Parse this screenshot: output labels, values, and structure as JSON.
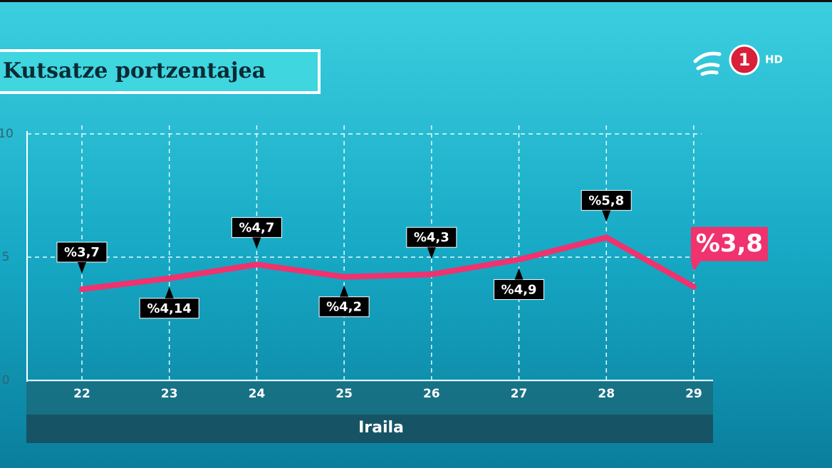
{
  "chart_data": {
    "type": "line",
    "title": "Kutsatze portzentajea",
    "x_label": "Iraila",
    "categories": [
      "22",
      "23",
      "24",
      "25",
      "26",
      "27",
      "28",
      "29"
    ],
    "values": [
      3.7,
      4.14,
      4.7,
      4.2,
      4.3,
      4.9,
      5.8,
      3.8
    ],
    "value_labels": [
      "%3,7",
      "%4,14",
      "%4,7",
      "%4,2",
      "%4,3",
      "%4,9",
      "%5,8",
      "%3,8"
    ],
    "color": "#f0326e",
    "ylim": [
      0,
      10
    ],
    "yticks": [
      0,
      5,
      10
    ],
    "grid": true
  },
  "logo": {
    "channel": "1",
    "quality": "HD"
  }
}
